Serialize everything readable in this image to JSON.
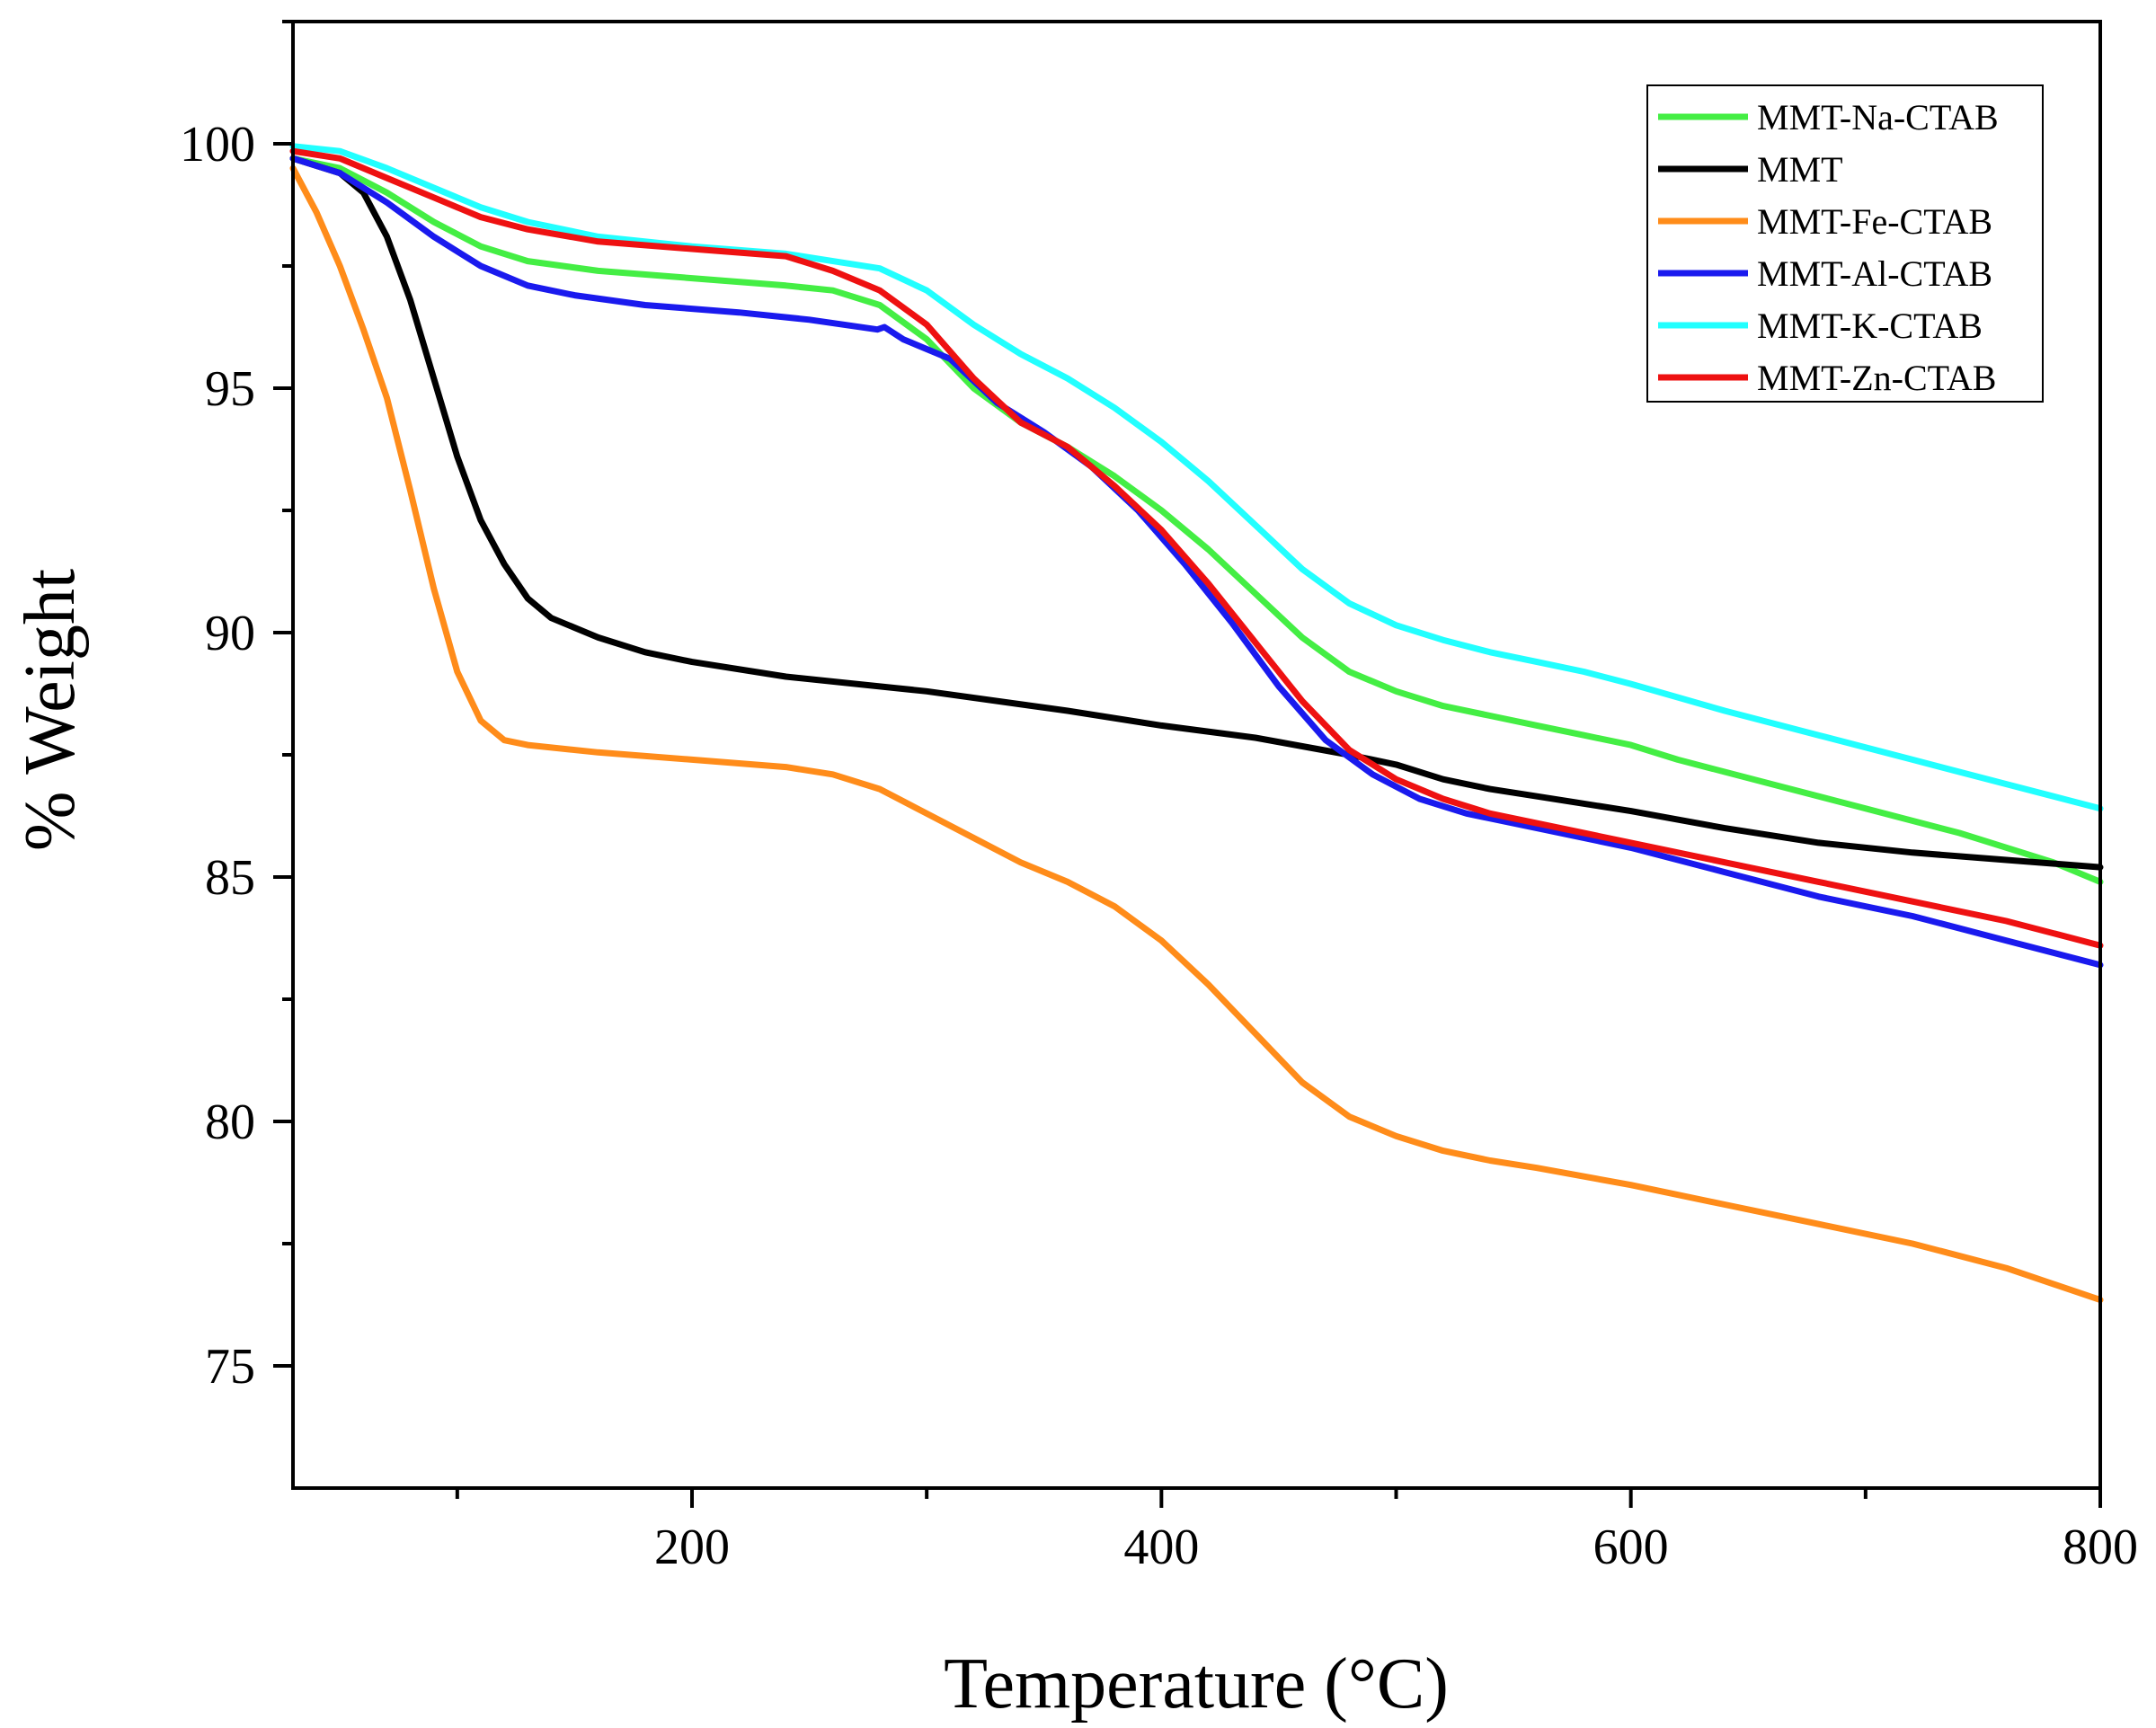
{
  "chart_data": {
    "type": "line",
    "title": "",
    "xlabel": "Temperature (°C)",
    "ylabel": "% Weight",
    "xlim": [
      30,
      800
    ],
    "ylim": [
      72.5,
      102.5
    ],
    "x_major_ticks": [
      200,
      400,
      600,
      800
    ],
    "x_minor_ticks": [
      100,
      300,
      500,
      700
    ],
    "x_tick_labels": [
      "200",
      "400",
      "600",
      "800"
    ],
    "y_major_ticks": [
      75,
      80,
      85,
      90,
      95,
      100
    ],
    "y_minor_ticks": [
      77.5,
      82.5,
      87.5,
      92.5,
      97.5,
      102.5
    ],
    "y_tick_labels": [
      "75",
      "80",
      "85",
      "90",
      "95",
      "100"
    ],
    "grid": false,
    "legend_position": "top-right",
    "series": [
      {
        "name": "MMT-Na-CTAB",
        "color": "#44ee44",
        "points": [
          [
            30,
            99.7
          ],
          [
            50,
            99.5
          ],
          [
            70,
            99.0
          ],
          [
            90,
            98.4
          ],
          [
            110,
            97.9
          ],
          [
            130,
            97.6
          ],
          [
            160,
            97.4
          ],
          [
            200,
            97.25
          ],
          [
            240,
            97.1
          ],
          [
            260,
            97.0
          ],
          [
            280,
            96.7
          ],
          [
            300,
            96.0
          ],
          [
            320,
            95.0
          ],
          [
            340,
            94.3
          ],
          [
            360,
            93.8
          ],
          [
            380,
            93.2
          ],
          [
            400,
            92.5
          ],
          [
            420,
            91.7
          ],
          [
            440,
            90.8
          ],
          [
            460,
            89.9
          ],
          [
            480,
            89.2
          ],
          [
            500,
            88.8
          ],
          [
            520,
            88.5
          ],
          [
            540,
            88.3
          ],
          [
            560,
            88.1
          ],
          [
            580,
            87.9
          ],
          [
            600,
            87.7
          ],
          [
            620,
            87.4
          ],
          [
            660,
            86.9
          ],
          [
            700,
            86.4
          ],
          [
            740,
            85.9
          ],
          [
            780,
            85.3
          ],
          [
            800,
            84.9
          ]
        ]
      },
      {
        "name": "MMT",
        "color": "#000000",
        "points": [
          [
            30,
            99.7
          ],
          [
            50,
            99.4
          ],
          [
            60,
            99.0
          ],
          [
            70,
            98.1
          ],
          [
            80,
            96.8
          ],
          [
            90,
            95.2
          ],
          [
            100,
            93.6
          ],
          [
            110,
            92.3
          ],
          [
            120,
            91.4
          ],
          [
            130,
            90.7
          ],
          [
            140,
            90.3
          ],
          [
            160,
            89.9
          ],
          [
            180,
            89.6
          ],
          [
            200,
            89.4
          ],
          [
            240,
            89.1
          ],
          [
            300,
            88.8
          ],
          [
            360,
            88.4
          ],
          [
            400,
            88.1
          ],
          [
            440,
            87.85
          ],
          [
            480,
            87.5
          ],
          [
            500,
            87.3
          ],
          [
            520,
            87.0
          ],
          [
            540,
            86.8
          ],
          [
            560,
            86.65
          ],
          [
            600,
            86.35
          ],
          [
            640,
            86.0
          ],
          [
            680,
            85.7
          ],
          [
            720,
            85.5
          ],
          [
            760,
            85.35
          ],
          [
            800,
            85.2
          ]
        ]
      },
      {
        "name": "MMT-Fe-CTAB",
        "color": "#ff8c1a",
        "points": [
          [
            30,
            99.5
          ],
          [
            40,
            98.6
          ],
          [
            50,
            97.5
          ],
          [
            60,
            96.2
          ],
          [
            70,
            94.8
          ],
          [
            80,
            92.9
          ],
          [
            90,
            90.9
          ],
          [
            100,
            89.2
          ],
          [
            110,
            88.2
          ],
          [
            120,
            87.8
          ],
          [
            130,
            87.7
          ],
          [
            160,
            87.55
          ],
          [
            200,
            87.4
          ],
          [
            240,
            87.25
          ],
          [
            260,
            87.1
          ],
          [
            280,
            86.8
          ],
          [
            300,
            86.3
          ],
          [
            320,
            85.8
          ],
          [
            340,
            85.3
          ],
          [
            360,
            84.9
          ],
          [
            380,
            84.4
          ],
          [
            400,
            83.7
          ],
          [
            420,
            82.8
          ],
          [
            440,
            81.8
          ],
          [
            460,
            80.8
          ],
          [
            480,
            80.1
          ],
          [
            500,
            79.7
          ],
          [
            520,
            79.4
          ],
          [
            540,
            79.2
          ],
          [
            560,
            79.05
          ],
          [
            600,
            78.7
          ],
          [
            640,
            78.3
          ],
          [
            680,
            77.9
          ],
          [
            720,
            77.5
          ],
          [
            760,
            77.0
          ],
          [
            800,
            76.35
          ]
        ]
      },
      {
        "name": "MMT-Al-CTAB",
        "color": "#1a1aee",
        "points": [
          [
            30,
            99.7
          ],
          [
            50,
            99.4
          ],
          [
            70,
            98.8
          ],
          [
            90,
            98.1
          ],
          [
            110,
            97.5
          ],
          [
            130,
            97.1
          ],
          [
            150,
            96.9
          ],
          [
            180,
            96.7
          ],
          [
            220,
            96.55
          ],
          [
            250,
            96.4
          ],
          [
            279,
            96.2
          ],
          [
            282,
            96.25
          ],
          [
            290,
            96.0
          ],
          [
            310,
            95.6
          ],
          [
            330,
            94.7
          ],
          [
            350,
            94.1
          ],
          [
            370,
            93.4
          ],
          [
            390,
            92.5
          ],
          [
            410,
            91.4
          ],
          [
            430,
            90.2
          ],
          [
            450,
            88.9
          ],
          [
            470,
            87.8
          ],
          [
            490,
            87.1
          ],
          [
            510,
            86.6
          ],
          [
            530,
            86.3
          ],
          [
            560,
            86.0
          ],
          [
            600,
            85.6
          ],
          [
            640,
            85.1
          ],
          [
            680,
            84.6
          ],
          [
            720,
            84.2
          ],
          [
            760,
            83.7
          ],
          [
            800,
            83.2
          ]
        ]
      },
      {
        "name": "MMT-K-CTAB",
        "color": "#22ffff",
        "points": [
          [
            30,
            99.95
          ],
          [
            50,
            99.85
          ],
          [
            70,
            99.5
          ],
          [
            90,
            99.1
          ],
          [
            110,
            98.7
          ],
          [
            130,
            98.4
          ],
          [
            160,
            98.1
          ],
          [
            200,
            97.9
          ],
          [
            240,
            97.75
          ],
          [
            260,
            97.6
          ],
          [
            280,
            97.45
          ],
          [
            300,
            97.0
          ],
          [
            320,
            96.3
          ],
          [
            340,
            95.7
          ],
          [
            360,
            95.2
          ],
          [
            380,
            94.6
          ],
          [
            400,
            93.9
          ],
          [
            420,
            93.1
          ],
          [
            440,
            92.2
          ],
          [
            460,
            91.3
          ],
          [
            480,
            90.6
          ],
          [
            500,
            90.15
          ],
          [
            520,
            89.85
          ],
          [
            540,
            89.6
          ],
          [
            560,
            89.4
          ],
          [
            580,
            89.2
          ],
          [
            600,
            88.95
          ],
          [
            640,
            88.4
          ],
          [
            680,
            87.9
          ],
          [
            720,
            87.4
          ],
          [
            760,
            86.9
          ],
          [
            800,
            86.4
          ]
        ]
      },
      {
        "name": "MMT-Zn-CTAB",
        "color": "#ee1111",
        "points": [
          [
            30,
            99.85
          ],
          [
            50,
            99.7
          ],
          [
            70,
            99.3
          ],
          [
            90,
            98.9
          ],
          [
            110,
            98.5
          ],
          [
            130,
            98.25
          ],
          [
            160,
            98.0
          ],
          [
            200,
            97.85
          ],
          [
            240,
            97.7
          ],
          [
            260,
            97.4
          ],
          [
            280,
            97.0
          ],
          [
            300,
            96.3
          ],
          [
            320,
            95.2
          ],
          [
            340,
            94.3
          ],
          [
            360,
            93.8
          ],
          [
            380,
            93.0
          ],
          [
            400,
            92.1
          ],
          [
            420,
            91.0
          ],
          [
            440,
            89.8
          ],
          [
            460,
            88.6
          ],
          [
            480,
            87.6
          ],
          [
            500,
            87.0
          ],
          [
            520,
            86.6
          ],
          [
            540,
            86.3
          ],
          [
            570,
            86.0
          ],
          [
            600,
            85.7
          ],
          [
            640,
            85.3
          ],
          [
            680,
            84.9
          ],
          [
            720,
            84.5
          ],
          [
            760,
            84.1
          ],
          [
            800,
            83.6
          ]
        ]
      }
    ]
  }
}
